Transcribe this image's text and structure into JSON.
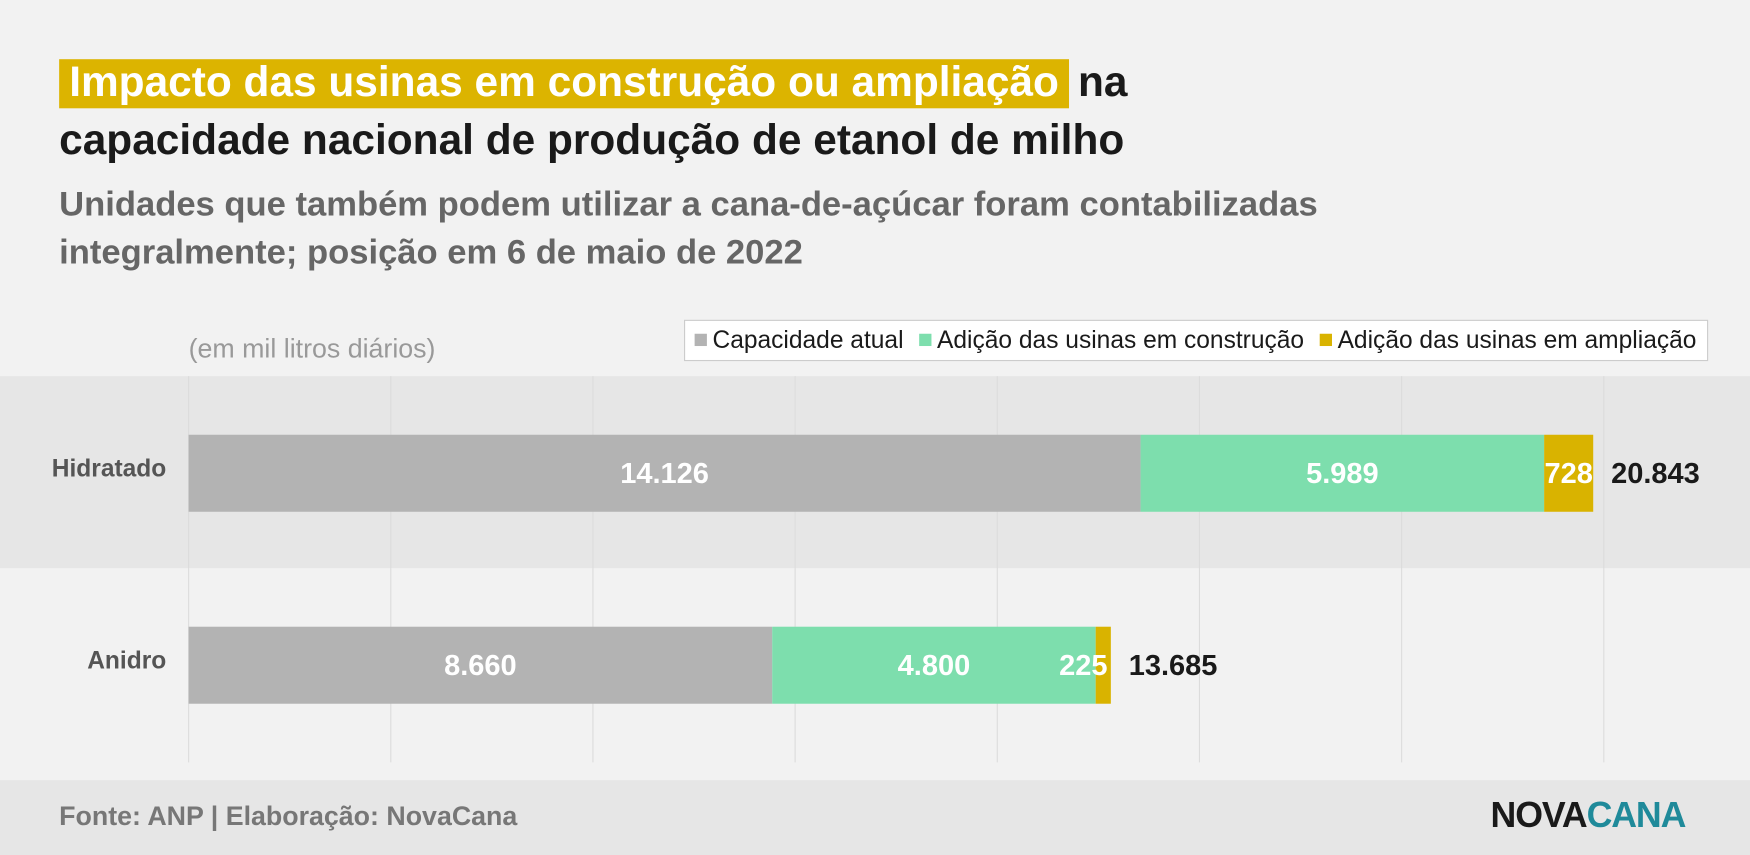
{
  "chart_data": {
    "type": "stacked-barh",
    "title": [
      "Impacto das usinas em construção ou ampliação",
      "na",
      "capacidade nacional de produção de etanol de milho"
    ],
    "subtitle": [
      "Unidades que também podem utilizar a cana-de-açúcar foram contabilizadas",
      "integralmente; posição em 6 de maio de 2022"
    ],
    "unit_note": "(em mil litros diários)",
    "categories": [
      "Hidratado",
      "Anidro"
    ],
    "series": [
      {
        "name": "Capacidade atual",
        "color": "#b3b3b3",
        "values": [
          14126,
          8660
        ],
        "value_labels": [
          "14.126",
          "8.660"
        ]
      },
      {
        "name": "Adição das usinas em construção",
        "color": "#7ddead",
        "values": [
          5989,
          4800
        ],
        "value_labels": [
          "5.989",
          "4.800"
        ]
      },
      {
        "name": "Adição das usinas em ampliação",
        "color": "#d9b300",
        "values": [
          728,
          225
        ],
        "value_labels": [
          "728",
          "225"
        ]
      }
    ],
    "totals": {
      "values": [
        20843,
        13685
      ],
      "value_labels": [
        "20.843",
        "13.685"
      ]
    },
    "xlim": [
      0,
      21000
    ],
    "xticks": [
      0,
      3000,
      6000,
      9000,
      12000,
      15000,
      18000,
      21000
    ],
    "grid": true,
    "legend": "top-right",
    "source": "Fonte: ANP | Elaboração: NovaCana",
    "logo": [
      "NOVA",
      "CANA"
    ]
  }
}
